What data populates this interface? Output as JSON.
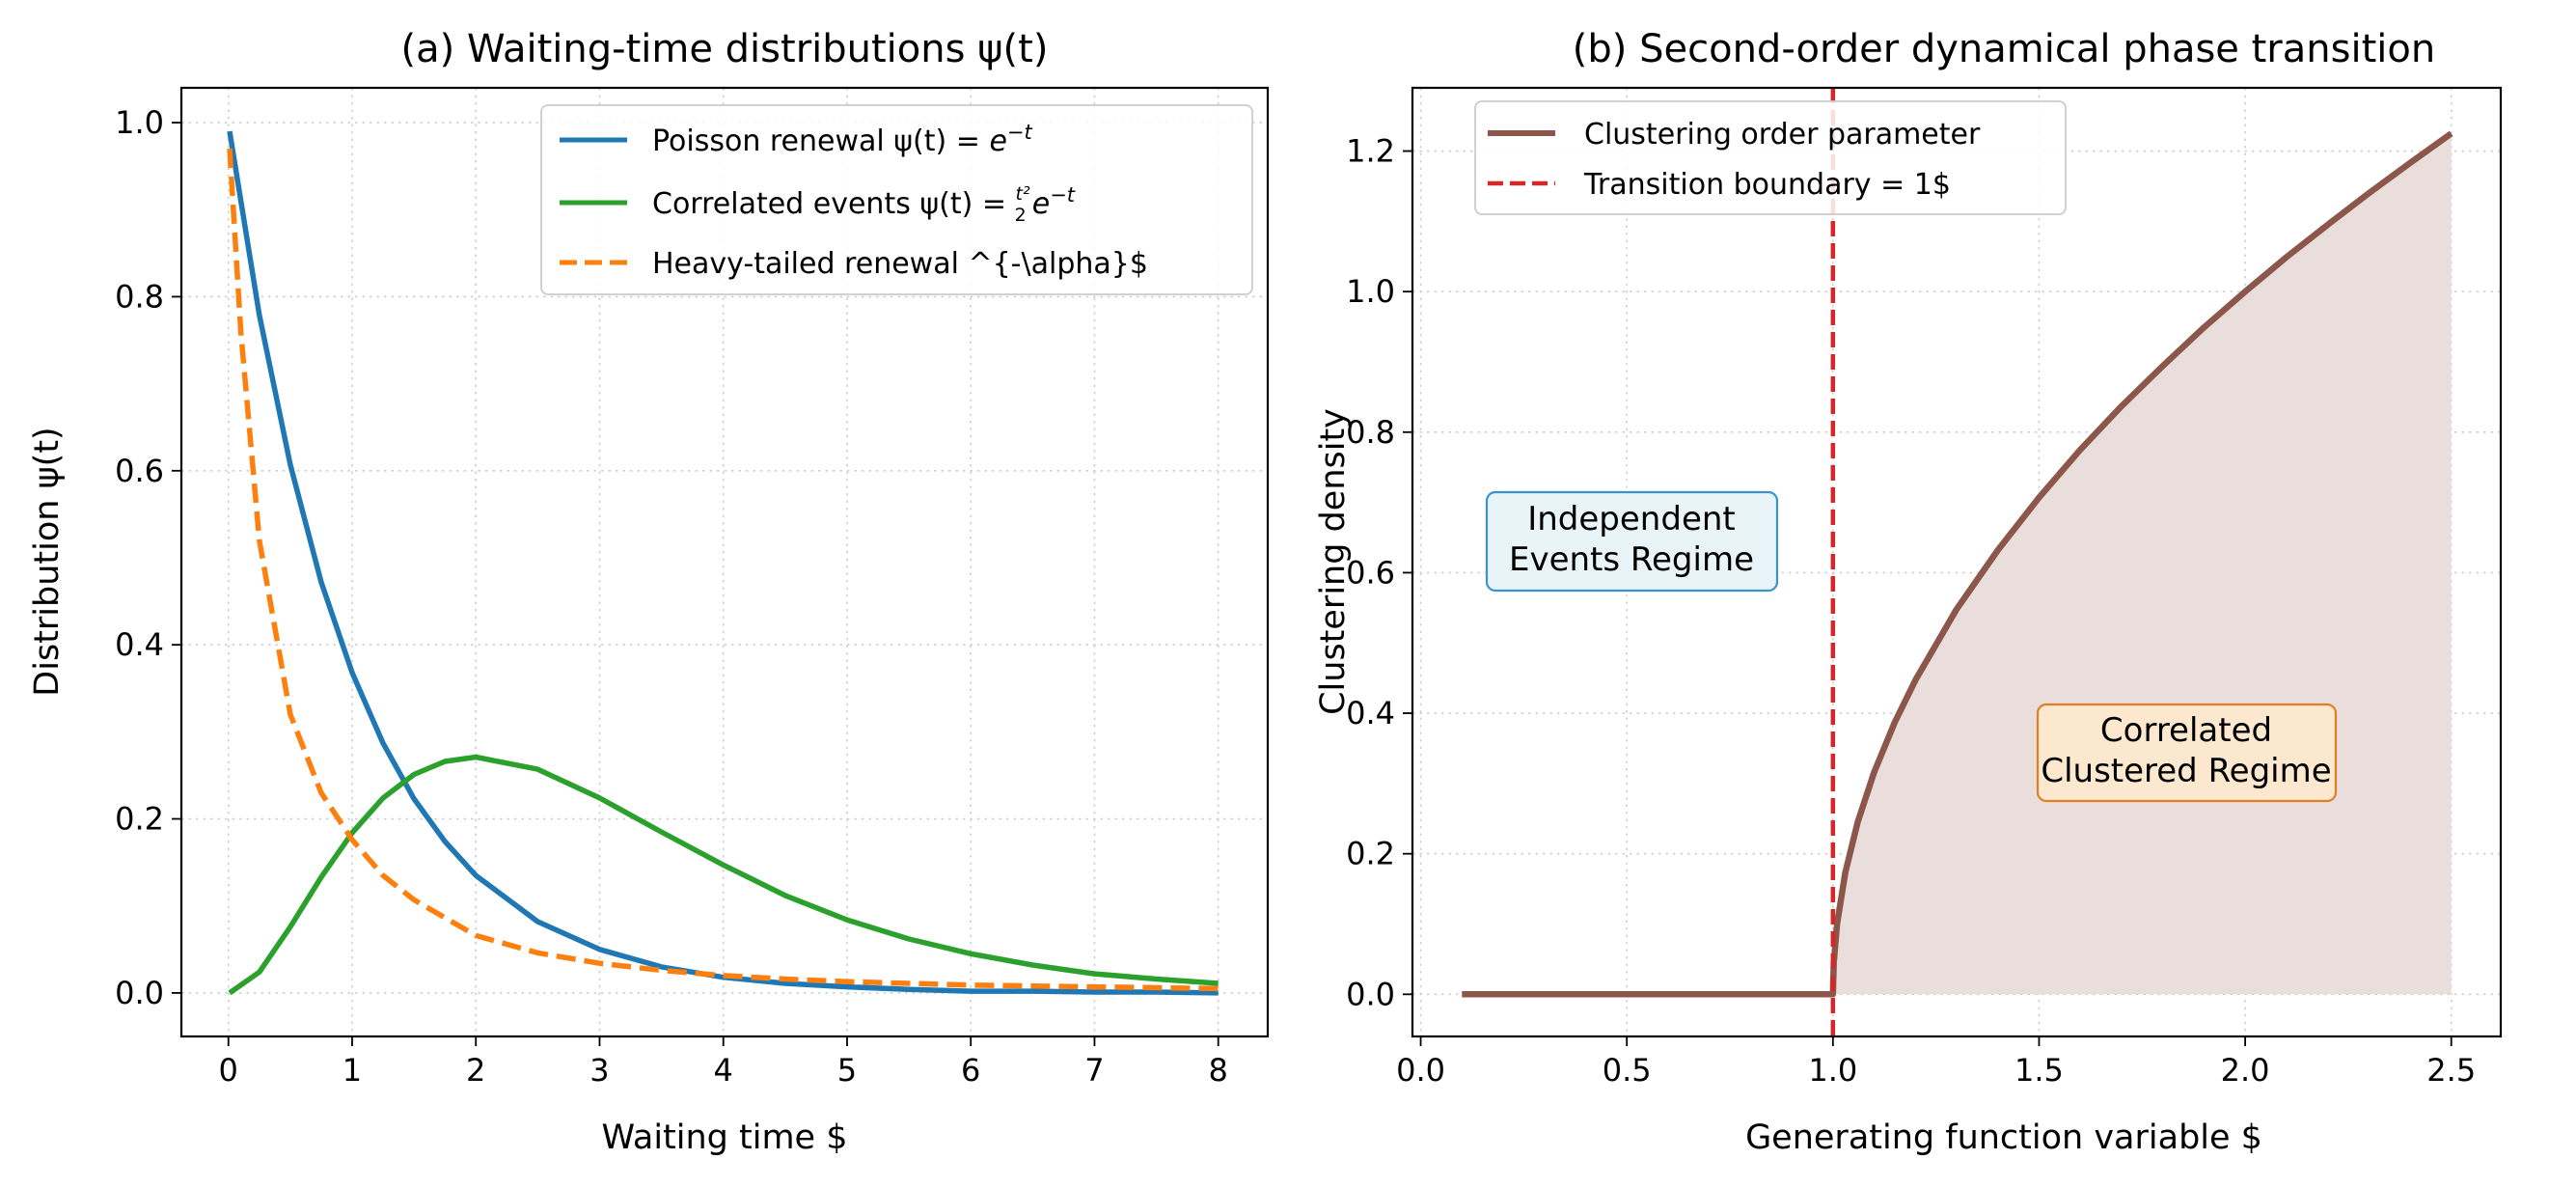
{
  "chart_data": [
    {
      "type": "line",
      "title": "(a) Waiting-time distributions ψ(t)",
      "xlabel": "Waiting time $",
      "ylabel": "Distribution ψ(t)",
      "xlim": [
        -0.38,
        8.4
      ],
      "ylim": [
        -0.05,
        1.04
      ],
      "xticks": [
        0,
        1,
        2,
        3,
        4,
        5,
        6,
        7,
        8
      ],
      "yticks": [
        0.0,
        0.2,
        0.4,
        0.6,
        0.8,
        1.0
      ],
      "xtick_labels": [
        "0",
        "1",
        "2",
        "3",
        "4",
        "5",
        "6",
        "7",
        "8"
      ],
      "ytick_labels": [
        "0.0",
        "0.2",
        "0.4",
        "0.6",
        "0.8",
        "1.0"
      ],
      "grid": true,
      "legend_position": "top-right",
      "series": [
        {
          "name": "Poisson renewal ψ(t) = e⁻ᵗ",
          "name_plain": "Poisson renewal ψ(t) = ",
          "name_math": "e",
          "name_sup": "−t",
          "color": "#1f77b4",
          "style": "solid",
          "x": [
            0.01,
            0.25,
            0.5,
            0.75,
            1.0,
            1.25,
            1.5,
            1.75,
            2.0,
            2.5,
            3.0,
            3.5,
            4.0,
            4.5,
            5.0,
            5.5,
            6.0,
            6.5,
            7.0,
            7.5,
            8.0
          ],
          "y": [
            0.99,
            0.779,
            0.607,
            0.472,
            0.368,
            0.287,
            0.223,
            0.174,
            0.135,
            0.082,
            0.05,
            0.03,
            0.018,
            0.011,
            0.007,
            0.004,
            0.002,
            0.002,
            0.001,
            0.001,
            0.0
          ]
        },
        {
          "name": "Correlated events ψ(t) = t²/2 e⁻ᵗ",
          "name_plain": "Correlated events ψ(t) = ",
          "name_math": "e",
          "name_sup": "−t",
          "color": "#2ca02c",
          "style": "solid",
          "x": [
            0.01,
            0.25,
            0.5,
            0.75,
            1.0,
            1.25,
            1.5,
            1.75,
            2.0,
            2.5,
            3.0,
            3.5,
            4.0,
            4.5,
            5.0,
            5.5,
            6.0,
            6.5,
            7.0,
            7.5,
            8.0
          ],
          "y": [
            0.0,
            0.024,
            0.076,
            0.133,
            0.184,
            0.224,
            0.251,
            0.266,
            0.271,
            0.257,
            0.224,
            0.185,
            0.147,
            0.112,
            0.084,
            0.062,
            0.045,
            0.032,
            0.022,
            0.016,
            0.011
          ]
        },
        {
          "name": "Heavy-tailed renewal ^{-\\alpha}$",
          "color": "#ff7f0e",
          "style": "dashed",
          "x": [
            0.01,
            0.1,
            0.25,
            0.5,
            0.75,
            1.0,
            1.25,
            1.5,
            2.0,
            2.5,
            3.0,
            3.5,
            4.0,
            4.5,
            5.0,
            5.5,
            6.0,
            6.5,
            7.0,
            7.5,
            8.0
          ],
          "y": [
            0.97,
            0.76,
            0.52,
            0.32,
            0.23,
            0.176,
            0.135,
            0.107,
            0.066,
            0.046,
            0.034,
            0.026,
            0.02,
            0.016,
            0.013,
            0.011,
            0.009,
            0.008,
            0.007,
            0.006,
            0.005
          ]
        }
      ]
    },
    {
      "type": "area",
      "title": "(b) Second-order dynamical phase transition",
      "xlabel": "Generating function variable $",
      "ylabel": "Clustering density",
      "xlim": [
        -0.02,
        2.62
      ],
      "ylim": [
        -0.06,
        1.29
      ],
      "xticks": [
        0.0,
        0.5,
        1.0,
        1.5,
        2.0,
        2.5
      ],
      "yticks": [
        0.0,
        0.2,
        0.4,
        0.6,
        0.8,
        1.0,
        1.2
      ],
      "xtick_labels": [
        "0.0",
        "0.5",
        "1.0",
        "1.5",
        "2.0",
        "2.5"
      ],
      "ytick_labels": [
        "0.0",
        "0.2",
        "0.4",
        "0.6",
        "0.8",
        "1.0",
        "1.2"
      ],
      "grid": true,
      "legend_position": "top-left",
      "series": [
        {
          "name": "Clustering order parameter",
          "color": "#8c564b",
          "fill": "#e9dedc",
          "style": "solid",
          "x": [
            0.1,
            0.5,
            0.99,
            1.0,
            1.002,
            1.01,
            1.03,
            1.06,
            1.1,
            1.15,
            1.2,
            1.3,
            1.4,
            1.5,
            1.6,
            1.7,
            1.8,
            1.9,
            2.0,
            2.1,
            2.2,
            2.3,
            2.4,
            2.5
          ],
          "y": [
            0.0,
            0.0,
            0.0,
            0.0,
            0.045,
            0.1,
            0.173,
            0.245,
            0.316,
            0.387,
            0.447,
            0.548,
            0.632,
            0.707,
            0.775,
            0.837,
            0.894,
            0.949,
            1.0,
            1.049,
            1.095,
            1.14,
            1.183,
            1.225
          ]
        }
      ],
      "vline": {
        "name": "Transition boundary  = 1$",
        "x": 1.0,
        "color": "#d62728",
        "style": "dashed"
      },
      "annotations": [
        {
          "lines": [
            "Independent",
            "Events Regime"
          ],
          "x": 0.4,
          "y": 0.65,
          "face": "#e8f4f8",
          "edge": "#3a93cf"
        },
        {
          "lines": [
            "Correlated",
            "Clustered Regime"
          ],
          "x": 1.8,
          "y": 0.35,
          "face": "#fbe8cf",
          "edge": "#e07f22"
        }
      ]
    }
  ]
}
